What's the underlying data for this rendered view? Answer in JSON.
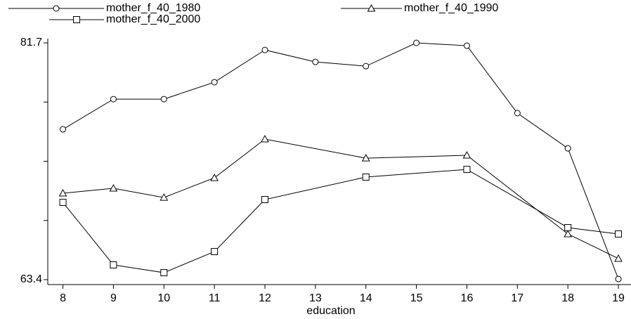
{
  "chart_data": {
    "type": "line",
    "x_label": "education",
    "xlim": [
      7.7,
      19.25
    ],
    "xticks": [
      8,
      9,
      10,
      11,
      12,
      13,
      14,
      15,
      16,
      17,
      18,
      19
    ],
    "ylim": [
      63.4,
      81.7
    ],
    "yticks": [
      63.4,
      81.7
    ],
    "yminorticks": [
      67.975,
      72.55,
      77.125
    ],
    "series": [
      {
        "name": "mother_f_40_1980",
        "color": "#000000",
        "marker": "circle",
        "x": [
          8,
          9,
          10,
          11,
          12,
          13,
          14,
          15,
          16,
          17,
          18,
          19
        ],
        "values": [
          75.02,
          77.35,
          77.35,
          78.66,
          81.15,
          80.23,
          79.9,
          81.7,
          81.48,
          76.27,
          73.55,
          63.45
        ]
      },
      {
        "name": "mother_f_40_1990",
        "color": "#000000",
        "marker": "triangle",
        "x": [
          8,
          9,
          10,
          11,
          12,
          14,
          16,
          18,
          19
        ],
        "values": [
          70.08,
          70.46,
          69.75,
          71.27,
          74.26,
          72.79,
          73.01,
          66.93,
          65.03
        ]
      },
      {
        "name": "mother_f_40_2000",
        "color": "#000000",
        "marker": "square",
        "x": [
          8,
          9,
          10,
          11,
          12,
          14,
          16,
          18,
          19
        ],
        "values": [
          69.37,
          64.54,
          63.94,
          65.57,
          69.59,
          71.33,
          71.92,
          67.42,
          66.93
        ]
      }
    ]
  }
}
